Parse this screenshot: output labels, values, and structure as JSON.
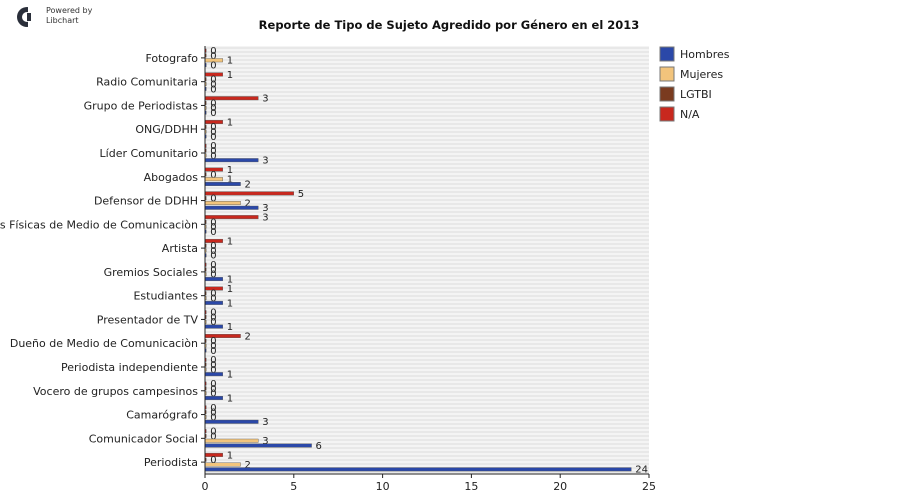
{
  "branding": {
    "line1": "Powered by",
    "line2": "Libchart"
  },
  "chart_data": {
    "type": "bar",
    "orientation": "horizontal",
    "title": "Reporte de Tipo de Sujeto Agredido por Género en el 2013",
    "categories": [
      "Fotografo",
      "Radio Comunitaria",
      "Grupo de Periodistas",
      "ONG/DDHH",
      "Líder Comunitario",
      "Abogados",
      "Defensor de DDHH",
      "Instalaciones Físicas de Medio de Comunicaciòn",
      "Artista",
      "Gremios Sociales",
      "Estudiantes",
      "Presentador de TV",
      "Dueño de Medio de Comunicaciòn",
      "Periodista independiente",
      "Vocero de grupos campesinos",
      "Camarógrafo",
      "Comunicador Social",
      "Periodista"
    ],
    "series": [
      {
        "name": "Hombres",
        "color": "#2b48a8",
        "values": [
          0,
          0,
          0,
          0,
          3,
          2,
          3,
          0,
          0,
          1,
          1,
          1,
          0,
          1,
          1,
          3,
          6,
          24
        ]
      },
      {
        "name": "Mujeres",
        "color": "#f2c47c",
        "values": [
          1,
          0,
          0,
          0,
          0,
          1,
          2,
          0,
          0,
          0,
          0,
          0,
          0,
          0,
          0,
          0,
          3,
          2
        ]
      },
      {
        "name": "LGTBI",
        "color": "#7a3b1f",
        "values": [
          0,
          0,
          0,
          0,
          0,
          0,
          0,
          0,
          0,
          0,
          0,
          0,
          0,
          0,
          0,
          0,
          0,
          0
        ]
      },
      {
        "name": "N/A",
        "color": "#c8281e",
        "values": [
          0,
          1,
          3,
          1,
          0,
          1,
          5,
          3,
          1,
          0,
          1,
          0,
          2,
          0,
          0,
          0,
          0,
          1
        ]
      }
    ],
    "xlim": [
      0,
      25
    ],
    "xticks": [
      0,
      5,
      10,
      15,
      20,
      25
    ],
    "legend_position": "right",
    "grid": true
  }
}
